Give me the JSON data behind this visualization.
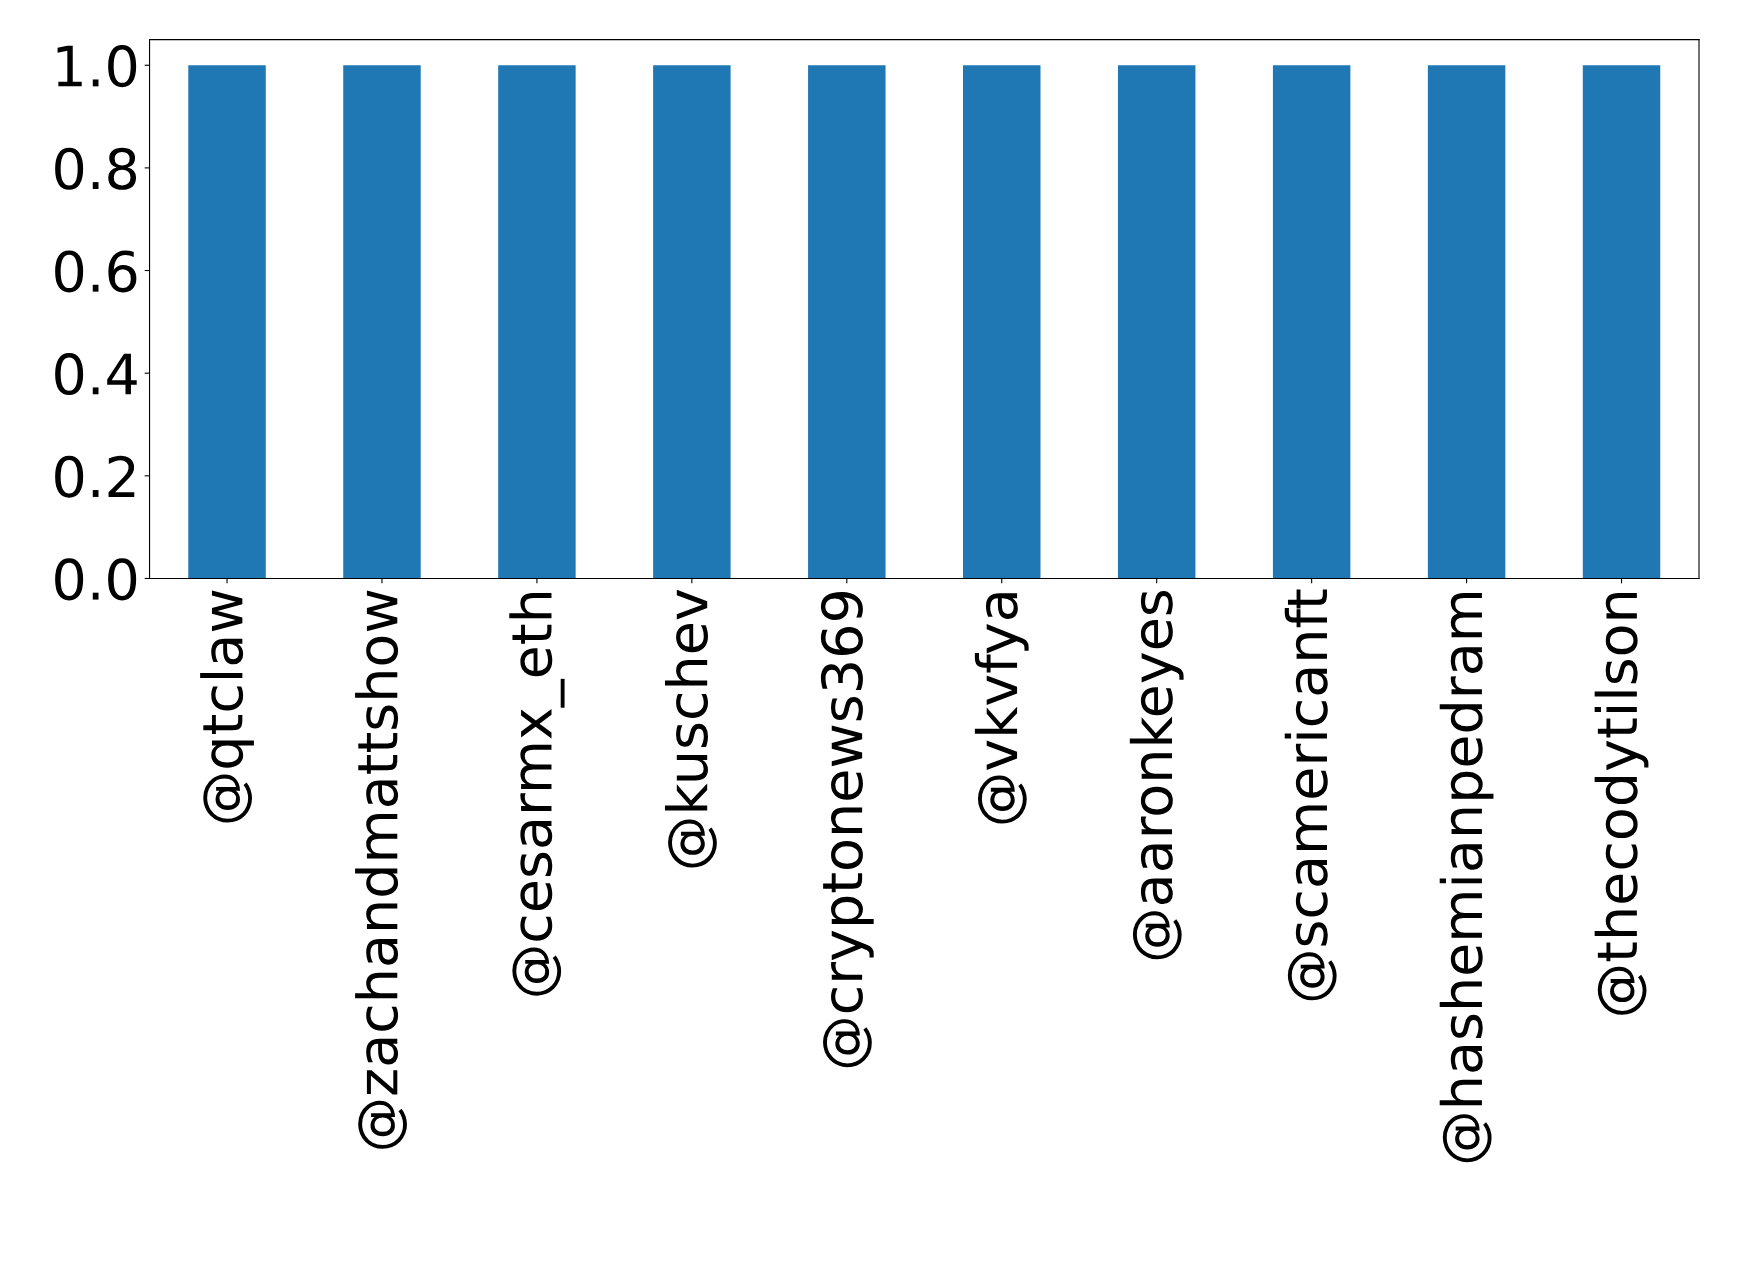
{
  "chart_data": {
    "type": "bar",
    "categories": [
      "@qtclaw",
      "@zachandmattshow",
      "@cesarmx_eth",
      "@kuschev",
      "@cryptonews369",
      "@vkvfya",
      "@aaronkeyes",
      "@scamericanft",
      "@hashemianpedram",
      "@thecodytilson"
    ],
    "values": [
      1,
      1,
      1,
      1,
      1,
      1,
      1,
      1,
      1,
      1
    ],
    "color": "#1f77b4",
    "ylim": [
      0,
      1.05
    ],
    "yticks": [
      {
        "value": 0,
        "label": "0.0"
      },
      {
        "value": 0.2,
        "label": "0.2"
      },
      {
        "value": 0.4,
        "label": "0.4"
      },
      {
        "value": 0.6,
        "label": "0.6"
      },
      {
        "value": 0.8,
        "label": "0.8"
      },
      {
        "value": 1,
        "label": "1.0"
      }
    ],
    "grid": false,
    "legend": false
  }
}
